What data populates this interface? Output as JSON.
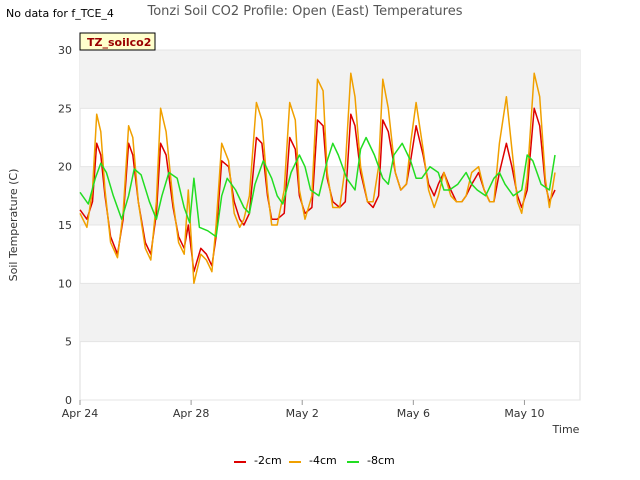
{
  "no_data_note": "No data for f_TCE_4",
  "chart_data": {
    "type": "line",
    "title": "Tonzi Soil CO2 Profile: Open (East) Temperatures",
    "badge": "TZ_soilco2",
    "xlabel": "Time",
    "ylabel": "Soil Temperature (C)",
    "ylim": [
      0,
      30
    ],
    "y_ticks": [
      "0",
      "5",
      "10",
      "15",
      "20",
      "25",
      "30"
    ],
    "x_ticks": [
      "Apr 24",
      "Apr 28",
      "May 2",
      "May 6",
      "May 10"
    ],
    "x_tick_days": [
      0,
      4,
      8,
      12,
      16
    ],
    "x_range_days": [
      0,
      18
    ],
    "grid": "horizontal bands",
    "legend_position": "bottom",
    "series": [
      {
        "name": "-2cm",
        "color": "#dd0000",
        "x": [
          0.0,
          0.25,
          0.45,
          0.6,
          0.75,
          0.9,
          1.1,
          1.35,
          1.55,
          1.75,
          1.9,
          2.1,
          2.35,
          2.55,
          2.75,
          2.9,
          3.1,
          3.35,
          3.55,
          3.75,
          3.9,
          4.1,
          4.35,
          4.55,
          4.75,
          4.9,
          5.1,
          5.35,
          5.55,
          5.75,
          5.9,
          6.1,
          6.35,
          6.55,
          6.75,
          6.9,
          7.1,
          7.35,
          7.55,
          7.75,
          7.9,
          8.1,
          8.35,
          8.55,
          8.75,
          8.9,
          9.1,
          9.35,
          9.55,
          9.75,
          9.9,
          10.1,
          10.35,
          10.55,
          10.75,
          10.9,
          11.1,
          11.35,
          11.55,
          11.75,
          11.9,
          12.1,
          12.35,
          12.55,
          12.75,
          12.9,
          13.1,
          13.35,
          13.55,
          13.75,
          13.9,
          14.1,
          14.35,
          14.55,
          14.75,
          14.9,
          15.1,
          15.35,
          15.55,
          15.75,
          15.9,
          16.1,
          16.35,
          16.55,
          16.75,
          16.9,
          17.1
        ],
        "values": [
          16.3,
          15.5,
          17.0,
          22.0,
          21.0,
          17.5,
          14.0,
          12.5,
          15.5,
          22.0,
          21.0,
          17.0,
          13.5,
          12.5,
          16.0,
          22.0,
          21.0,
          16.5,
          14.0,
          13.0,
          15.0,
          11.0,
          13.0,
          12.5,
          11.5,
          14.0,
          20.5,
          20.0,
          17.0,
          15.5,
          15.0,
          16.0,
          22.5,
          22.0,
          17.5,
          15.5,
          15.5,
          16.0,
          22.5,
          21.5,
          17.5,
          16.0,
          16.5,
          24.0,
          23.5,
          19.0,
          17.0,
          16.5,
          17.0,
          24.5,
          23.5,
          19.5,
          17.0,
          16.5,
          17.5,
          24.0,
          23.0,
          19.5,
          18.0,
          18.5,
          20.5,
          23.5,
          21.0,
          18.5,
          17.5,
          18.5,
          19.5,
          18.0,
          17.0,
          17.0,
          17.5,
          18.5,
          19.5,
          18.0,
          17.0,
          17.0,
          19.5,
          22.0,
          20.0,
          17.5,
          16.5,
          18.0,
          25.0,
          23.5,
          18.5,
          17.0,
          18.0
        ]
      },
      {
        "name": "-4cm",
        "color": "#f0a000",
        "x": [
          0.0,
          0.25,
          0.45,
          0.6,
          0.75,
          0.9,
          1.1,
          1.35,
          1.55,
          1.75,
          1.9,
          2.1,
          2.35,
          2.55,
          2.75,
          2.9,
          3.1,
          3.35,
          3.55,
          3.75,
          3.9,
          4.1,
          4.35,
          4.55,
          4.75,
          4.9,
          5.1,
          5.35,
          5.55,
          5.75,
          5.9,
          6.1,
          6.35,
          6.55,
          6.75,
          6.9,
          7.1,
          7.35,
          7.55,
          7.75,
          7.9,
          8.1,
          8.35,
          8.55,
          8.75,
          8.9,
          9.1,
          9.35,
          9.55,
          9.75,
          9.9,
          10.1,
          10.35,
          10.55,
          10.75,
          10.9,
          11.1,
          11.35,
          11.55,
          11.75,
          11.9,
          12.1,
          12.35,
          12.55,
          12.75,
          12.9,
          13.1,
          13.35,
          13.55,
          13.75,
          13.9,
          14.1,
          14.35,
          14.55,
          14.75,
          14.9,
          15.1,
          15.35,
          15.55,
          15.75,
          15.9,
          16.1,
          16.35,
          16.55,
          16.75,
          16.9,
          17.1
        ],
        "values": [
          16.0,
          14.8,
          18.0,
          24.5,
          23.0,
          18.0,
          13.5,
          12.2,
          16.0,
          23.5,
          22.5,
          17.0,
          13.0,
          12.0,
          17.0,
          25.0,
          23.0,
          17.0,
          13.5,
          12.5,
          18.0,
          10.0,
          12.5,
          12.0,
          11.0,
          15.0,
          22.0,
          20.5,
          16.0,
          14.8,
          15.5,
          17.5,
          25.5,
          24.0,
          18.0,
          15.0,
          15.0,
          18.0,
          25.5,
          24.0,
          18.0,
          15.5,
          17.5,
          27.5,
          26.5,
          19.5,
          16.5,
          16.5,
          20.0,
          28.0,
          26.0,
          20.0,
          17.0,
          17.0,
          20.0,
          27.5,
          25.0,
          19.5,
          18.0,
          18.5,
          22.0,
          25.5,
          21.5,
          18.0,
          16.5,
          17.5,
          19.5,
          17.5,
          17.0,
          17.0,
          17.5,
          19.5,
          20.0,
          18.0,
          17.0,
          17.0,
          22.0,
          26.0,
          21.5,
          17.0,
          16.0,
          19.0,
          28.0,
          26.0,
          19.0,
          16.5,
          19.5
        ]
      },
      {
        "name": "-8cm",
        "color": "#22dd22",
        "x": [
          0.0,
          0.3,
          0.55,
          0.75,
          0.95,
          1.2,
          1.5,
          1.75,
          1.95,
          2.2,
          2.5,
          2.75,
          2.95,
          3.2,
          3.5,
          3.75,
          3.95,
          4.1,
          4.3,
          4.6,
          4.9,
          5.1,
          5.3,
          5.6,
          5.9,
          6.1,
          6.3,
          6.6,
          6.9,
          7.1,
          7.3,
          7.6,
          7.9,
          8.1,
          8.3,
          8.6,
          8.9,
          9.1,
          9.3,
          9.6,
          9.9,
          10.1,
          10.3,
          10.6,
          10.9,
          11.1,
          11.3,
          11.6,
          11.9,
          12.1,
          12.3,
          12.6,
          12.9,
          13.1,
          13.3,
          13.6,
          13.9,
          14.1,
          14.3,
          14.6,
          14.9,
          15.1,
          15.3,
          15.6,
          15.9,
          16.1,
          16.3,
          16.6,
          16.9,
          17.1
        ],
        "values": [
          17.8,
          16.8,
          19.0,
          20.3,
          19.5,
          17.5,
          15.5,
          17.5,
          19.8,
          19.3,
          17.0,
          15.5,
          17.5,
          19.5,
          19.0,
          16.5,
          15.2,
          19.0,
          14.8,
          14.5,
          14.0,
          17.5,
          19.0,
          18.0,
          16.5,
          16.0,
          18.5,
          20.5,
          19.0,
          17.5,
          16.8,
          19.5,
          21.0,
          20.0,
          18.0,
          17.5,
          20.5,
          22.0,
          21.0,
          19.0,
          18.0,
          21.5,
          22.5,
          21.0,
          19.0,
          18.5,
          21.0,
          22.0,
          20.5,
          19.0,
          19.0,
          20.0,
          19.5,
          18.0,
          18.0,
          18.5,
          19.5,
          18.5,
          18.0,
          17.5,
          19.0,
          19.5,
          18.5,
          17.5,
          18.0,
          21.0,
          20.5,
          18.5,
          18.0,
          21.0
        ]
      }
    ]
  }
}
